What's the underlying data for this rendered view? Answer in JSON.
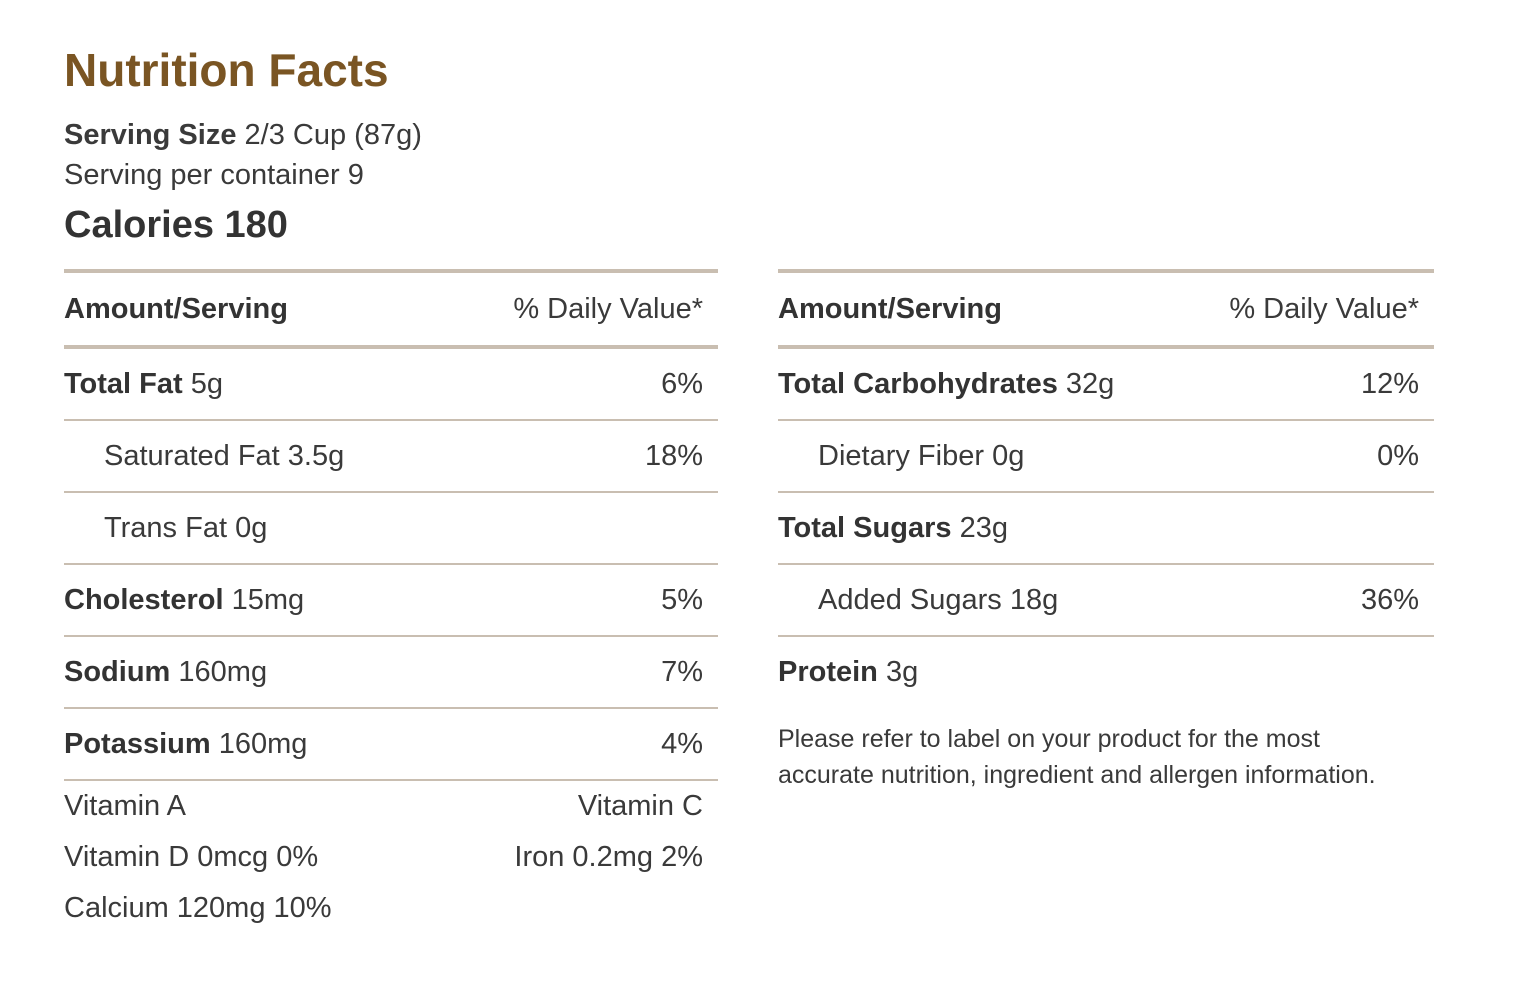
{
  "title": "Nutrition Facts",
  "serving_size_label": "Serving Size",
  "serving_size_value": "2/3 Cup (87g)",
  "servings_per_container": "Serving per container 9",
  "calories": "Calories 180",
  "table_header": {
    "amount": "Amount/Serving",
    "daily_value": "% Daily Value*"
  },
  "left_rows": [
    {
      "name": "Total Fat",
      "amount": "5g",
      "dv": "6%"
    },
    {
      "name": "Saturated Fat",
      "amount": "3.5g",
      "dv": "18%"
    },
    {
      "name": "Trans Fat",
      "amount": "0g",
      "dv": ""
    },
    {
      "name": "Cholesterol",
      "amount": "15mg",
      "dv": "5%"
    },
    {
      "name": "Sodium",
      "amount": "160mg",
      "dv": "7%"
    },
    {
      "name": "Potassium",
      "amount": "160mg",
      "dv": "4%"
    }
  ],
  "vitamins": [
    {
      "left": "Vitamin A",
      "right": "Vitamin C"
    },
    {
      "left": "Vitamin D 0mcg 0%",
      "right": "Iron 0.2mg 2%"
    },
    {
      "left": "Calcium 120mg 10%",
      "right": ""
    }
  ],
  "right_rows": [
    {
      "name": "Total Carbohydrates",
      "amount": "32g",
      "dv": "12%"
    },
    {
      "name": "Dietary Fiber",
      "amount": "0g",
      "dv": "0%"
    },
    {
      "name": "Total Sugars",
      "amount": "23g",
      "dv": ""
    },
    {
      "name": "Added Sugars",
      "amount": "18g",
      "dv": "36%"
    },
    {
      "name": "Protein",
      "amount": "3g",
      "dv": ""
    }
  ],
  "disclaimer": "Please refer to label on your product for the most accurate nutrition, ingredient and allergen information."
}
